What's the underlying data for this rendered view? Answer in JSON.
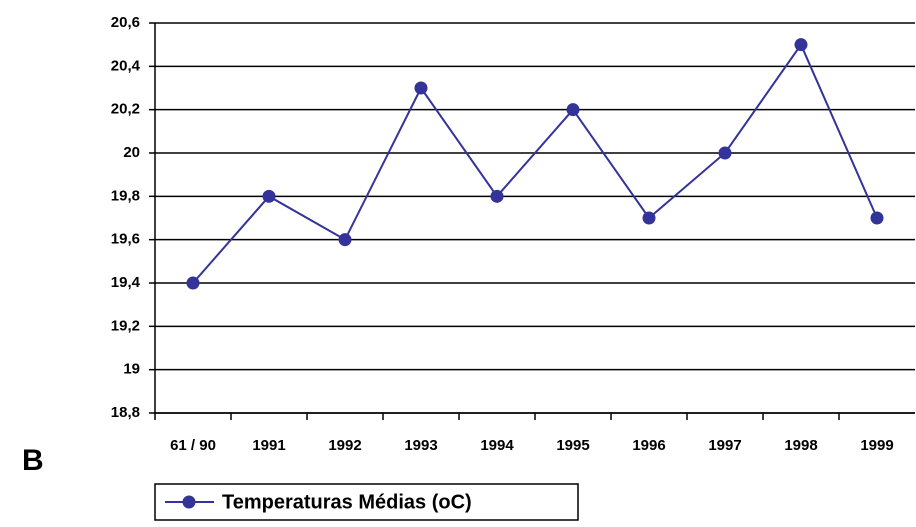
{
  "chart_data": {
    "type": "line",
    "panel_label": "B",
    "categories": [
      "61 / 90",
      "1991",
      "1992",
      "1993",
      "1994",
      "1995",
      "1996",
      "1997",
      "1998",
      "1999"
    ],
    "series": [
      {
        "name": "Temperaturas Médias (oC)",
        "color": "#333399",
        "values": [
          19.4,
          19.8,
          19.6,
          20.3,
          19.8,
          20.2,
          19.7,
          20.0,
          20.5,
          19.7
        ]
      }
    ],
    "ylim": [
      18.8,
      20.6
    ],
    "yticks": [
      {
        "value": 18.8,
        "label": "18,8"
      },
      19,
      {
        "value": 19.2,
        "label": "19,2"
      },
      {
        "value": 19.4,
        "label": "19,4"
      },
      {
        "value": 19.6,
        "label": "19,6"
      },
      {
        "value": 19.8,
        "label": "19,8"
      },
      20,
      {
        "value": 20.2,
        "label": "20,2"
      },
      {
        "value": 20.4,
        "label": "20,4"
      },
      {
        "value": 20.6,
        "label": "20,6"
      }
    ],
    "grid": true
  }
}
